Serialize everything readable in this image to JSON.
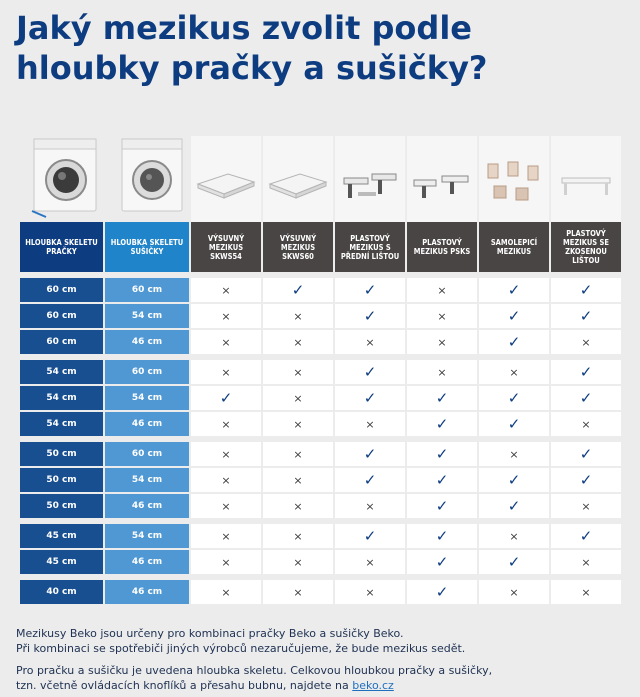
{
  "title": "Jaký mezikus zvolit podle hloubky pračky a sušičky?",
  "headers": {
    "washer": "Hloubka skeletu pračky",
    "dryer": "Hloubka skeletu sušičky",
    "products": [
      "Výsuvný mezikus SKWS54",
      "Výsuvný mezikus SKWS60",
      "Plastový mezikus s přední lištou",
      "Plastový mezikus PSKS",
      "Samolepicí mezikus",
      "Plastový mezikus se zkosenou lištou"
    ]
  },
  "marks": {
    "yes": "✓",
    "no": "×"
  },
  "rows": [
    {
      "w": "60 cm",
      "d": "60 cm",
      "m": [
        0,
        1,
        1,
        0,
        1,
        1
      ]
    },
    {
      "w": "60 cm",
      "d": "54 cm",
      "m": [
        0,
        0,
        1,
        0,
        1,
        1
      ]
    },
    {
      "w": "60 cm",
      "d": "46 cm",
      "m": [
        0,
        0,
        0,
        0,
        1,
        0
      ]
    },
    {
      "w": "54 cm",
      "d": "60 cm",
      "m": [
        0,
        0,
        1,
        0,
        0,
        1
      ]
    },
    {
      "w": "54 cm",
      "d": "54 cm",
      "m": [
        1,
        0,
        1,
        1,
        1,
        1
      ]
    },
    {
      "w": "54 cm",
      "d": "46 cm",
      "m": [
        0,
        0,
        0,
        1,
        1,
        0
      ]
    },
    {
      "w": "50 cm",
      "d": "60 cm",
      "m": [
        0,
        0,
        1,
        1,
        0,
        1
      ]
    },
    {
      "w": "50 cm",
      "d": "54 cm",
      "m": [
        0,
        0,
        1,
        1,
        1,
        1
      ]
    },
    {
      "w": "50 cm",
      "d": "46 cm",
      "m": [
        0,
        0,
        0,
        1,
        1,
        0
      ]
    },
    {
      "w": "45 cm",
      "d": "54 cm",
      "m": [
        0,
        0,
        1,
        1,
        0,
        1
      ]
    },
    {
      "w": "45 cm",
      "d": "46 cm",
      "m": [
        0,
        0,
        0,
        1,
        1,
        0
      ]
    },
    {
      "w": "40 cm",
      "d": "46 cm",
      "m": [
        0,
        0,
        0,
        1,
        0,
        0
      ]
    }
  ],
  "footer": {
    "p1_line1": "Mezikusy Beko jsou určeny pro kombinaci pračky Beko a sušičky Beko.",
    "p1_line2": "Při kombinaci se spotřebiči jiných výrobců nezaručujeme, že bude mezikus sedět.",
    "p2_line1": "Pro pračku a sušičku je uvedena hloubka skeletu. Celkovou hloubkou pračky a sušičky,",
    "p2_line2_prefix": "tzn. včetně ovládacích knoflíků a přesahu bubnu, najdete na ",
    "link": "beko.cz"
  },
  "colors": {
    "title": "#0d3d80",
    "washer_header": "#0d3d80",
    "dryer_header": "#1f84c9",
    "product_header": "#4a4545",
    "washer_cell": "#174f91",
    "dryer_cell": "#4f98d4",
    "check": "#0d3d80"
  },
  "icons": [
    "washing-machine-photo",
    "dryer-photo",
    "slide-out-stand-photo",
    "slide-out-stand-photo",
    "plastic-rail-photo",
    "plastic-clip-photo",
    "adhesive-pads-photo",
    "bevel-rail-photo"
  ]
}
